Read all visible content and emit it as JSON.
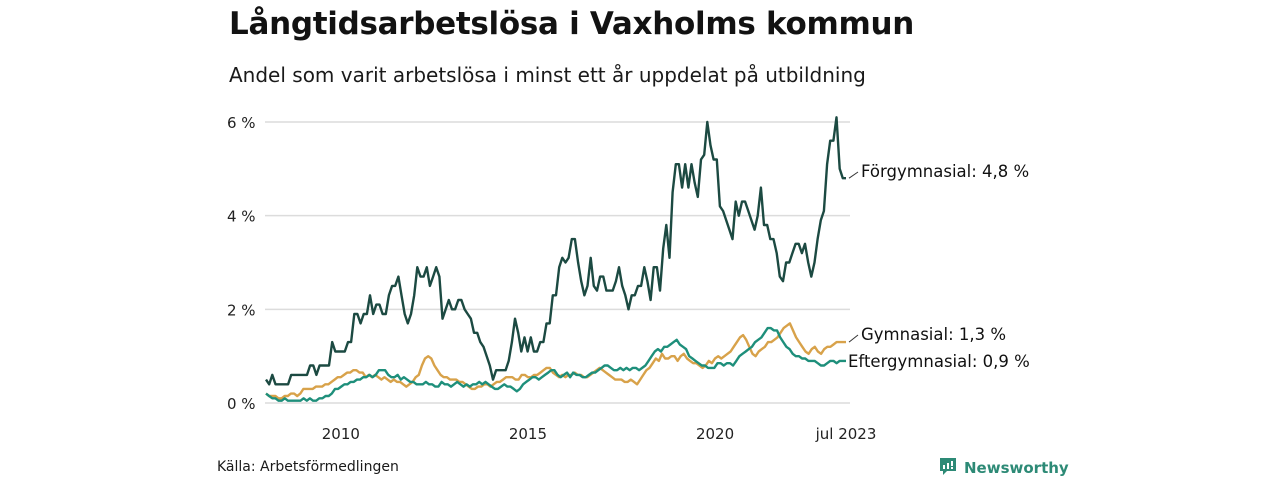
{
  "title": "Långtidsarbetslösa i Vaxholms kommun",
  "subtitle": "Andel som varit arbetslösa i minst ett år uppdelat på utbildning",
  "source": "Källa: Arbetsförmedlingen",
  "brand": {
    "name": "Newsworthy",
    "icon": "newsworthy-logo-icon",
    "color": "#2d8a76"
  },
  "chart_data": {
    "type": "line",
    "title": "Långtidsarbetslösa i Vaxholms kommun",
    "subtitle": "Andel som varit arbetslösa i minst ett år uppdelat på utbildning",
    "xlabel": "",
    "ylabel": "",
    "x_start": "2008-01",
    "x_end": "2023-07",
    "frequency": "monthly",
    "x_ticks": [
      {
        "value": 2010.0,
        "label": "2010"
      },
      {
        "value": 2015.0,
        "label": "2015"
      },
      {
        "value": 2020.0,
        "label": "2020"
      },
      {
        "value": 2023.5,
        "label": "jul 2023"
      }
    ],
    "y_ticks": [
      {
        "value": 0,
        "label": "0 %"
      },
      {
        "value": 2,
        "label": "2 %"
      },
      {
        "value": 4,
        "label": "4 %"
      },
      {
        "value": 6,
        "label": "6 %"
      }
    ],
    "ylim": [
      0,
      6
    ],
    "xlim": [
      2008.0,
      2023.5
    ],
    "grid": true,
    "legend": "direct-labels-right",
    "series": [
      {
        "name": "Förgymnasial",
        "end_label": "Förgymnasial: 4,8 %",
        "color": "#1c4a42",
        "values": [
          0.5,
          0.4,
          0.6,
          0.4,
          0.4,
          0.4,
          0.4,
          0.4,
          0.6,
          0.6,
          0.6,
          0.6,
          0.6,
          0.6,
          0.8,
          0.8,
          0.6,
          0.8,
          0.8,
          0.8,
          0.8,
          1.3,
          1.1,
          1.1,
          1.1,
          1.1,
          1.3,
          1.3,
          1.9,
          1.9,
          1.7,
          1.9,
          1.9,
          2.3,
          1.9,
          2.1,
          2.1,
          1.9,
          1.9,
          2.3,
          2.5,
          2.5,
          2.7,
          2.3,
          1.9,
          1.7,
          1.9,
          2.3,
          2.9,
          2.7,
          2.7,
          2.9,
          2.5,
          2.7,
          2.9,
          2.7,
          1.8,
          2.0,
          2.2,
          2.0,
          2.0,
          2.2,
          2.2,
          2.0,
          1.9,
          1.8,
          1.5,
          1.5,
          1.3,
          1.2,
          1.0,
          0.8,
          0.5,
          0.7,
          0.7,
          0.7,
          0.7,
          0.9,
          1.3,
          1.8,
          1.5,
          1.1,
          1.4,
          1.1,
          1.4,
          1.1,
          1.1,
          1.3,
          1.3,
          1.7,
          1.7,
          2.3,
          2.3,
          2.9,
          3.1,
          3.0,
          3.1,
          3.5,
          3.5,
          3.0,
          2.6,
          2.3,
          2.5,
          3.1,
          2.5,
          2.4,
          2.7,
          2.7,
          2.4,
          2.4,
          2.4,
          2.6,
          2.9,
          2.5,
          2.3,
          2.0,
          2.3,
          2.3,
          2.5,
          2.5,
          2.9,
          2.6,
          2.2,
          2.9,
          2.9,
          2.4,
          3.3,
          3.8,
          3.1,
          4.5,
          5.1,
          5.1,
          4.6,
          5.1,
          4.6,
          5.1,
          4.7,
          4.4,
          5.2,
          5.3,
          6.0,
          5.5,
          5.2,
          5.2,
          4.2,
          4.1,
          3.9,
          3.7,
          3.5,
          4.3,
          4.0,
          4.3,
          4.3,
          4.1,
          3.9,
          3.7,
          4.0,
          4.6,
          3.8,
          3.8,
          3.5,
          3.5,
          3.2,
          2.7,
          2.6,
          3.0,
          3.0,
          3.2,
          3.4,
          3.4,
          3.2,
          3.4,
          3.0,
          2.7,
          3.0,
          3.5,
          3.9,
          4.1,
          5.1,
          5.6,
          5.6,
          6.1,
          5.0,
          4.8,
          4.8
        ]
      },
      {
        "name": "Gymnasial",
        "end_label": "Gymnasial: 1,3 %",
        "color": "#d8a24a",
        "values": [
          0.2,
          0.15,
          0.15,
          0.15,
          0.1,
          0.1,
          0.15,
          0.15,
          0.2,
          0.2,
          0.15,
          0.2,
          0.3,
          0.3,
          0.3,
          0.3,
          0.35,
          0.35,
          0.35,
          0.4,
          0.4,
          0.45,
          0.5,
          0.55,
          0.55,
          0.6,
          0.65,
          0.65,
          0.7,
          0.7,
          0.65,
          0.65,
          0.55,
          0.6,
          0.55,
          0.6,
          0.55,
          0.5,
          0.55,
          0.5,
          0.45,
          0.5,
          0.45,
          0.45,
          0.4,
          0.35,
          0.4,
          0.45,
          0.55,
          0.6,
          0.8,
          0.95,
          1.0,
          0.95,
          0.8,
          0.7,
          0.6,
          0.55,
          0.55,
          0.5,
          0.5,
          0.5,
          0.45,
          0.45,
          0.4,
          0.35,
          0.3,
          0.3,
          0.35,
          0.35,
          0.4,
          0.4,
          0.35,
          0.4,
          0.45,
          0.45,
          0.5,
          0.55,
          0.55,
          0.55,
          0.5,
          0.5,
          0.6,
          0.6,
          0.55,
          0.55,
          0.6,
          0.6,
          0.65,
          0.7,
          0.75,
          0.75,
          0.65,
          0.6,
          0.55,
          0.6,
          0.55,
          0.6,
          0.6,
          0.65,
          0.6,
          0.6,
          0.55,
          0.55,
          0.6,
          0.65,
          0.7,
          0.75,
          0.7,
          0.65,
          0.6,
          0.55,
          0.5,
          0.5,
          0.5,
          0.45,
          0.45,
          0.5,
          0.45,
          0.4,
          0.5,
          0.6,
          0.7,
          0.75,
          0.85,
          0.95,
          0.9,
          1.05,
          0.95,
          0.95,
          1.0,
          1.0,
          0.9,
          1.0,
          1.05,
          0.95,
          0.9,
          0.85,
          0.85,
          0.8,
          0.75,
          0.8,
          0.9,
          0.85,
          0.95,
          1.0,
          0.95,
          1.0,
          1.05,
          1.1,
          1.2,
          1.3,
          1.4,
          1.45,
          1.35,
          1.2,
          1.05,
          1.0,
          1.1,
          1.15,
          1.2,
          1.3,
          1.3,
          1.35,
          1.4,
          1.5,
          1.6,
          1.65,
          1.7,
          1.55,
          1.4,
          1.3,
          1.2,
          1.1,
          1.05,
          1.15,
          1.2,
          1.1,
          1.05,
          1.15,
          1.2,
          1.2,
          1.25,
          1.3,
          1.3,
          1.3,
          1.3
        ]
      },
      {
        "name": "Eftergymnasial",
        "end_label": "Eftergymnasial: 0,9 %",
        "color": "#1e8f7b",
        "values": [
          0.2,
          0.15,
          0.1,
          0.1,
          0.05,
          0.05,
          0.1,
          0.05,
          0.05,
          0.05,
          0.05,
          0.05,
          0.1,
          0.05,
          0.1,
          0.05,
          0.05,
          0.1,
          0.1,
          0.15,
          0.15,
          0.2,
          0.3,
          0.3,
          0.35,
          0.4,
          0.4,
          0.45,
          0.45,
          0.5,
          0.5,
          0.55,
          0.55,
          0.6,
          0.55,
          0.6,
          0.7,
          0.7,
          0.7,
          0.6,
          0.55,
          0.55,
          0.6,
          0.5,
          0.55,
          0.5,
          0.45,
          0.45,
          0.4,
          0.4,
          0.4,
          0.45,
          0.4,
          0.4,
          0.35,
          0.35,
          0.45,
          0.4,
          0.4,
          0.35,
          0.4,
          0.45,
          0.4,
          0.35,
          0.4,
          0.35,
          0.4,
          0.4,
          0.45,
          0.4,
          0.45,
          0.4,
          0.35,
          0.3,
          0.3,
          0.35,
          0.4,
          0.35,
          0.35,
          0.3,
          0.25,
          0.3,
          0.4,
          0.45,
          0.5,
          0.55,
          0.55,
          0.5,
          0.55,
          0.6,
          0.65,
          0.7,
          0.7,
          0.6,
          0.55,
          0.6,
          0.65,
          0.55,
          0.65,
          0.6,
          0.6,
          0.55,
          0.55,
          0.6,
          0.65,
          0.65,
          0.7,
          0.75,
          0.8,
          0.8,
          0.75,
          0.7,
          0.7,
          0.75,
          0.7,
          0.75,
          0.7,
          0.75,
          0.75,
          0.7,
          0.75,
          0.8,
          0.9,
          1.0,
          1.1,
          1.15,
          1.1,
          1.2,
          1.2,
          1.25,
          1.3,
          1.35,
          1.25,
          1.2,
          1.15,
          1.0,
          0.95,
          0.9,
          0.85,
          0.8,
          0.8,
          0.75,
          0.75,
          0.75,
          0.85,
          0.85,
          0.8,
          0.85,
          0.85,
          0.8,
          0.9,
          1.0,
          1.05,
          1.1,
          1.15,
          1.2,
          1.3,
          1.35,
          1.4,
          1.5,
          1.6,
          1.6,
          1.55,
          1.55,
          1.4,
          1.3,
          1.2,
          1.15,
          1.05,
          1.0,
          1.0,
          0.95,
          0.95,
          0.9,
          0.9,
          0.9,
          0.85,
          0.8,
          0.8,
          0.85,
          0.9,
          0.9,
          0.85,
          0.9,
          0.9,
          0.9
        ]
      }
    ]
  }
}
